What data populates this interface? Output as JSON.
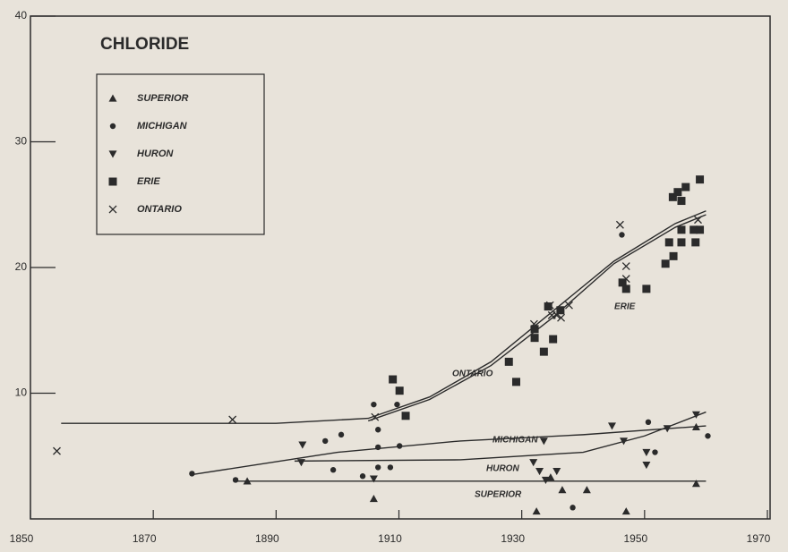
{
  "chart_data": {
    "type": "scatter",
    "title": "CHLORIDE",
    "xlim": [
      1850,
      1970
    ],
    "xticks": [
      1850,
      1870,
      1890,
      1910,
      1930,
      1950,
      1970
    ],
    "ylim": [
      0,
      40
    ],
    "yticks": [
      10,
      20,
      30,
      40
    ],
    "series": [
      {
        "name": "SUPERIOR",
        "marker": "triangle-up",
        "color": "#2b2b2b",
        "x": [
          1885.3,
          1905.9,
          1932.4,
          1934.7,
          1936.6,
          1940.6,
          1947,
          1958.4,
          1958.4
        ],
        "values": [
          3.0,
          1.6,
          0.6,
          3.3,
          2.3,
          2.3,
          0.6,
          2.8,
          7.3
        ]
      },
      {
        "name": "MICHIGAN",
        "marker": "circle",
        "color": "#2b2b2b",
        "x": [
          1876.3,
          1883.4,
          1898,
          1899.3,
          1900.6,
          1904.1,
          1905.9,
          1906.6,
          1906.6,
          1906.6,
          1908.6,
          1909.7,
          1910.1,
          1938.3,
          1946.3,
          1950.6,
          1951.7,
          1960.3
        ],
        "values": [
          3.6,
          3.1,
          6.2,
          3.9,
          6.7,
          3.4,
          9.1,
          7.1,
          5.7,
          4.1,
          4.1,
          9.1,
          5.8,
          0.9,
          22.6,
          7.7,
          5.3,
          6.6
        ]
      },
      {
        "name": "HURON",
        "marker": "triangle-down",
        "color": "#2b2b2b",
        "x": [
          1894.3,
          1894.1,
          1905.9,
          1933.6,
          1931.9,
          1932.9,
          1933.9,
          1935.7,
          1944.7,
          1946.6,
          1950.3,
          1950.3,
          1953.7,
          1958.4
        ],
        "values": [
          5.9,
          4.5,
          3.2,
          6.2,
          4.5,
          3.8,
          3.1,
          3.8,
          7.4,
          6.2,
          5.3,
          4.3,
          7.2,
          8.3
        ]
      },
      {
        "name": "ERIE",
        "marker": "square",
        "color": "#2b2b2b",
        "x": [
          1909,
          1910.1,
          1911.1,
          1927.9,
          1929.1,
          1932.1,
          1932.1,
          1933.6,
          1934.3,
          1935.1,
          1936.3,
          1946.4,
          1947,
          1950.3,
          1953.4,
          1954,
          1954.7,
          1954.6,
          1955.4,
          1956,
          1956.7,
          1956,
          1956,
          1958,
          1959,
          1959,
          1958.3
        ],
        "values": [
          11.1,
          10.2,
          8.2,
          12.5,
          10.9,
          15.1,
          14.4,
          13.3,
          16.9,
          14.3,
          16.6,
          18.8,
          18.3,
          18.3,
          20.3,
          22,
          20.9,
          25.6,
          26,
          25.3,
          26.4,
          22,
          23,
          23,
          27,
          23,
          22
        ]
      },
      {
        "name": "ONTARIO",
        "marker": "x",
        "color": "#2b2b2b",
        "x": [
          1854.3,
          1882.9,
          1906.1,
          1932,
          1934.6,
          1934.9,
          1935.7,
          1936.4,
          1937.7,
          1946,
          1947,
          1947,
          1958.7
        ],
        "values": [
          5.4,
          7.9,
          8.1,
          15.5,
          17,
          16.2,
          16.2,
          16,
          17,
          23.4,
          20.1,
          19.1,
          23.8
        ]
      }
    ],
    "curves": [
      {
        "label": "ONTARIO",
        "x": [
          1855,
          1890,
          1905,
          1915,
          1925,
          1935,
          1945,
          1955,
          1960
        ],
        "values": [
          7.6,
          7.6,
          8.0,
          9.7,
          12.5,
          16.5,
          20.5,
          23.5,
          24.5
        ]
      },
      {
        "label": "ERIE",
        "x": [
          1905,
          1915,
          1925,
          1935,
          1945,
          1955,
          1960
        ],
        "values": [
          7.8,
          9.5,
          12.2,
          16,
          20.3,
          23.2,
          24.2
        ]
      },
      {
        "label": "MICHIGAN",
        "x": [
          1876,
          1900,
          1920,
          1940,
          1960
        ],
        "values": [
          3.5,
          5.3,
          6.2,
          6.7,
          7.4
        ]
      },
      {
        "label": "HURON",
        "x": [
          1893,
          1920,
          1940,
          1950,
          1960
        ],
        "values": [
          4.6,
          4.7,
          5.3,
          6.6,
          8.5
        ]
      },
      {
        "label": "SUPERIOR",
        "x": [
          1883,
          1960
        ],
        "values": [
          3.0,
          3.0
        ]
      }
    ]
  }
}
